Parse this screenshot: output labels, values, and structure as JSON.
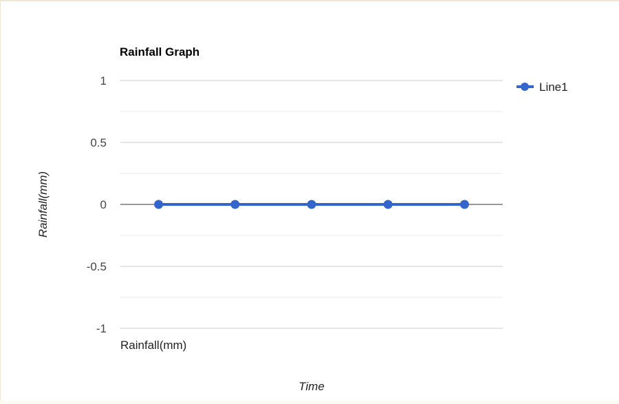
{
  "chart_data": {
    "type": "line",
    "title": "Rainfall Graph",
    "xlabel": "Time",
    "ylabel": "Rainfall(mm)",
    "categories": [
      "Rainfall(mm)",
      "",
      "",
      "",
      ""
    ],
    "series": [
      {
        "name": "Line1",
        "values": [
          0,
          0,
          0,
          0,
          0
        ]
      }
    ],
    "ylim": [
      -1,
      1
    ],
    "yticks": [
      1,
      0.5,
      0,
      -0.5,
      -1
    ],
    "grid": true,
    "legend": "right",
    "colors": {
      "line": "#3366cc",
      "grid_major": "#cccccc",
      "grid_minor": "#ebebeb",
      "baseline": "#333333"
    }
  }
}
